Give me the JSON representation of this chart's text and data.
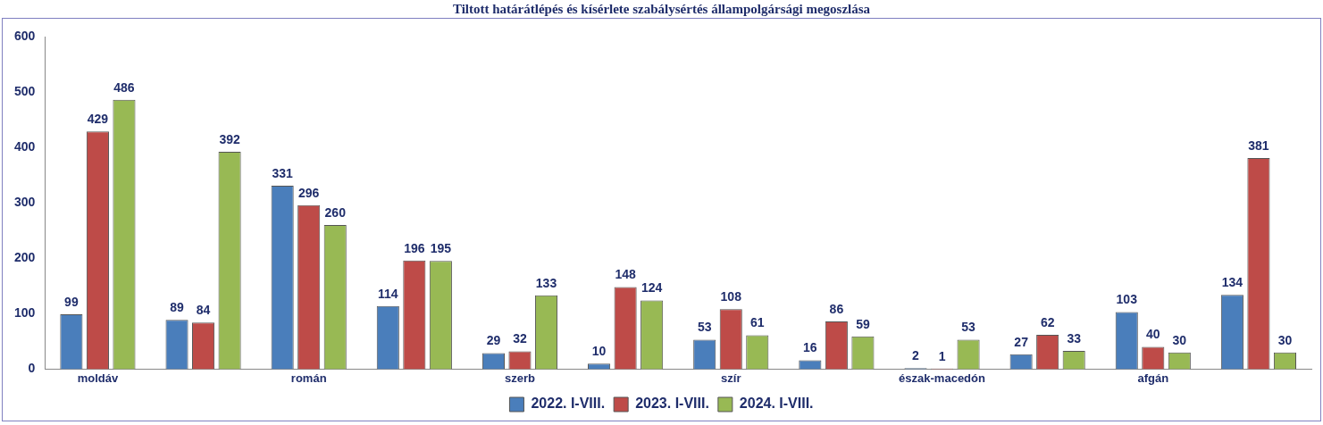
{
  "chart_data": {
    "type": "bar",
    "title": "Tiltott határátlépés és kísérlete szabálysértés állampolgársági megoszlása",
    "categories": [
      "moldáv",
      null,
      "román",
      null,
      "szerb",
      null,
      "szír",
      null,
      "észak-macedón",
      null,
      "afgán",
      null
    ],
    "series": [
      {
        "name": "2022. I-VIII.",
        "color": "#4a7ebb",
        "values": [
          99,
          89,
          331,
          114,
          29,
          10,
          53,
          16,
          2,
          27,
          103,
          134
        ]
      },
      {
        "name": "2023. I-VIII.",
        "color": "#be4b48",
        "values": [
          429,
          84,
          296,
          196,
          32,
          148,
          108,
          86,
          1,
          62,
          40,
          381
        ]
      },
      {
        "name": "2024. I-VIII.",
        "color": "#98b954",
        "values": [
          486,
          392,
          260,
          195,
          133,
          124,
          61,
          59,
          53,
          33,
          30,
          30
        ]
      }
    ],
    "ylim": [
      0,
      600
    ],
    "yticks": [
      0,
      100,
      200,
      300,
      400,
      500,
      600
    ],
    "grid": false,
    "legend": "bottom",
    "data_labels": true
  }
}
